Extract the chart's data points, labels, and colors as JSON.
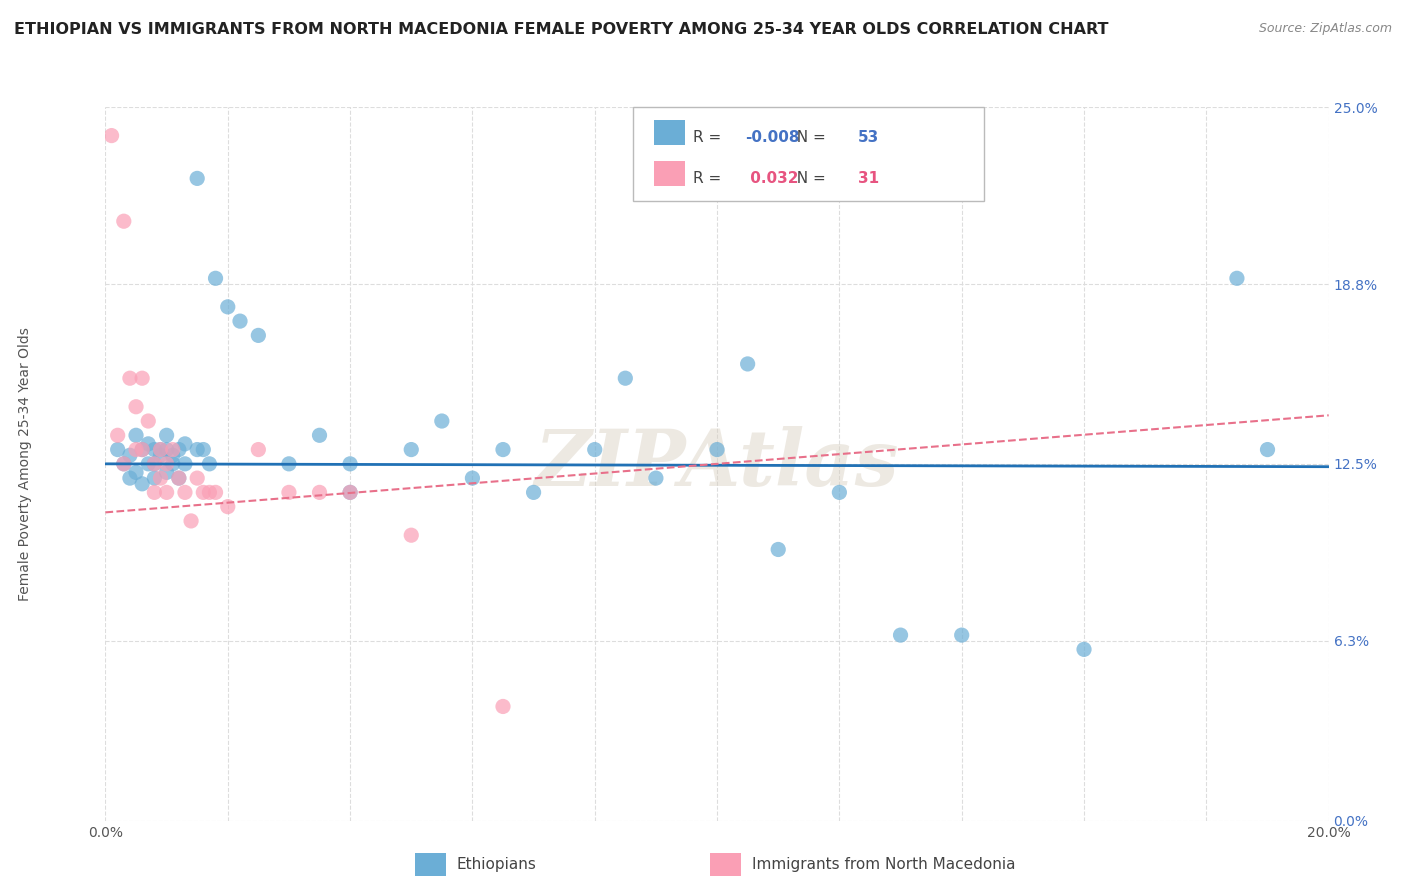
{
  "title": "ETHIOPIAN VS IMMIGRANTS FROM NORTH MACEDONIA FEMALE POVERTY AMONG 25-34 YEAR OLDS CORRELATION CHART",
  "source": "Source: ZipAtlas.com",
  "ylabel": "Female Poverty Among 25-34 Year Olds",
  "xlim": [
    0.0,
    0.2
  ],
  "ylim": [
    0.0,
    0.25
  ],
  "ytick_values_right": [
    0.0,
    0.063,
    0.125,
    0.188,
    0.25
  ],
  "ytick_labels_right": [
    "0.0%",
    "6.3%",
    "12.5%",
    "18.8%",
    "25.0%"
  ],
  "R_ethiopian": -0.008,
  "N_ethiopian": 53,
  "R_macedonia": 0.032,
  "N_macedonia": 31,
  "color_ethiopian": "#6baed6",
  "color_macedonia": "#fa9fb5",
  "trend_color_ethiopian": "#2171b5",
  "trend_color_macedonia": "#e8708a",
  "watermark": "ZIPAtlas",
  "background_color": "#ffffff",
  "grid_color": "#dddddd",
  "eth_trend_y0": 0.125,
  "eth_trend_y1": 0.124,
  "mac_trend_y0": 0.108,
  "mac_trend_y1": 0.142,
  "ethiopian_x": [
    0.002,
    0.003,
    0.004,
    0.004,
    0.005,
    0.005,
    0.006,
    0.006,
    0.007,
    0.007,
    0.008,
    0.008,
    0.008,
    0.009,
    0.009,
    0.01,
    0.01,
    0.01,
    0.011,
    0.011,
    0.012,
    0.012,
    0.013,
    0.013,
    0.015,
    0.015,
    0.016,
    0.017,
    0.018,
    0.02,
    0.022,
    0.025,
    0.03,
    0.035,
    0.04,
    0.04,
    0.05,
    0.055,
    0.06,
    0.065,
    0.07,
    0.08,
    0.085,
    0.09,
    0.1,
    0.105,
    0.11,
    0.12,
    0.13,
    0.14,
    0.16,
    0.185,
    0.19
  ],
  "ethiopian_y": [
    0.13,
    0.125,
    0.12,
    0.128,
    0.135,
    0.122,
    0.13,
    0.118,
    0.125,
    0.132,
    0.13,
    0.125,
    0.12,
    0.128,
    0.13,
    0.135,
    0.122,
    0.13,
    0.125,
    0.128,
    0.13,
    0.12,
    0.125,
    0.132,
    0.225,
    0.13,
    0.13,
    0.125,
    0.19,
    0.18,
    0.175,
    0.17,
    0.125,
    0.135,
    0.115,
    0.125,
    0.13,
    0.14,
    0.12,
    0.13,
    0.115,
    0.13,
    0.155,
    0.12,
    0.13,
    0.16,
    0.095,
    0.115,
    0.065,
    0.065,
    0.06,
    0.19,
    0.13
  ],
  "macedonia_x": [
    0.001,
    0.002,
    0.003,
    0.003,
    0.004,
    0.005,
    0.005,
    0.006,
    0.006,
    0.007,
    0.008,
    0.008,
    0.009,
    0.009,
    0.01,
    0.01,
    0.011,
    0.012,
    0.013,
    0.014,
    0.015,
    0.016,
    0.017,
    0.018,
    0.02,
    0.025,
    0.03,
    0.035,
    0.04,
    0.05,
    0.065
  ],
  "macedonia_y": [
    0.24,
    0.135,
    0.21,
    0.125,
    0.155,
    0.145,
    0.13,
    0.155,
    0.13,
    0.14,
    0.125,
    0.115,
    0.13,
    0.12,
    0.125,
    0.115,
    0.13,
    0.12,
    0.115,
    0.105,
    0.12,
    0.115,
    0.115,
    0.115,
    0.11,
    0.13,
    0.115,
    0.115,
    0.115,
    0.1,
    0.04
  ]
}
